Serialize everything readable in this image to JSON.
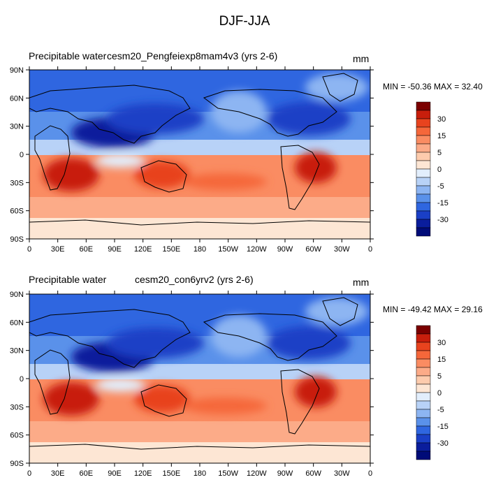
{
  "title": "DJF-JJA",
  "panels": [
    {
      "left_label": "Precipitable water",
      "case_label": "cesm20_Pengfeiexp8mam4v3 (yrs 2-6)",
      "units": "mm",
      "minmax": "MIN = -50.36 MAX =  32.40"
    },
    {
      "left_label": "Precipitable water",
      "case_label": "cesm20_con6yrv2 (yrs 2-6)",
      "units": "mm",
      "minmax": "MIN = -49.42 MAX =  29.16"
    }
  ],
  "axes": {
    "x_ticks": [
      "0",
      "30E",
      "60E",
      "90E",
      "120E",
      "150E",
      "180",
      "150W",
      "120W",
      "90W",
      "60W",
      "30W",
      "0"
    ],
    "y_ticks": [
      "90N",
      "60N",
      "30N",
      "0",
      "30S",
      "60S",
      "90S"
    ]
  },
  "colorbar": {
    "colors": [
      "#7b0000",
      "#c81e0c",
      "#e8431e",
      "#f5673a",
      "#fa8c62",
      "#fcab88",
      "#fdcbad",
      "#fde6d4",
      "#e2eefc",
      "#b8d2f7",
      "#8db5f2",
      "#5a91ea",
      "#2f66e0",
      "#1a3fc6",
      "#0a1d9c",
      "#000b78"
    ],
    "labels": [
      "30",
      "15",
      "5",
      "0",
      "-5",
      "-15",
      "-30"
    ]
  },
  "palette": {
    "deep_blue": "#000b78",
    "mid_blue": "#2f66e0",
    "light_blue": "#b8d2f7",
    "pale_orange": "#fde6d4",
    "orange": "#fa8c62",
    "deep_red": "#c81e0c"
  }
}
